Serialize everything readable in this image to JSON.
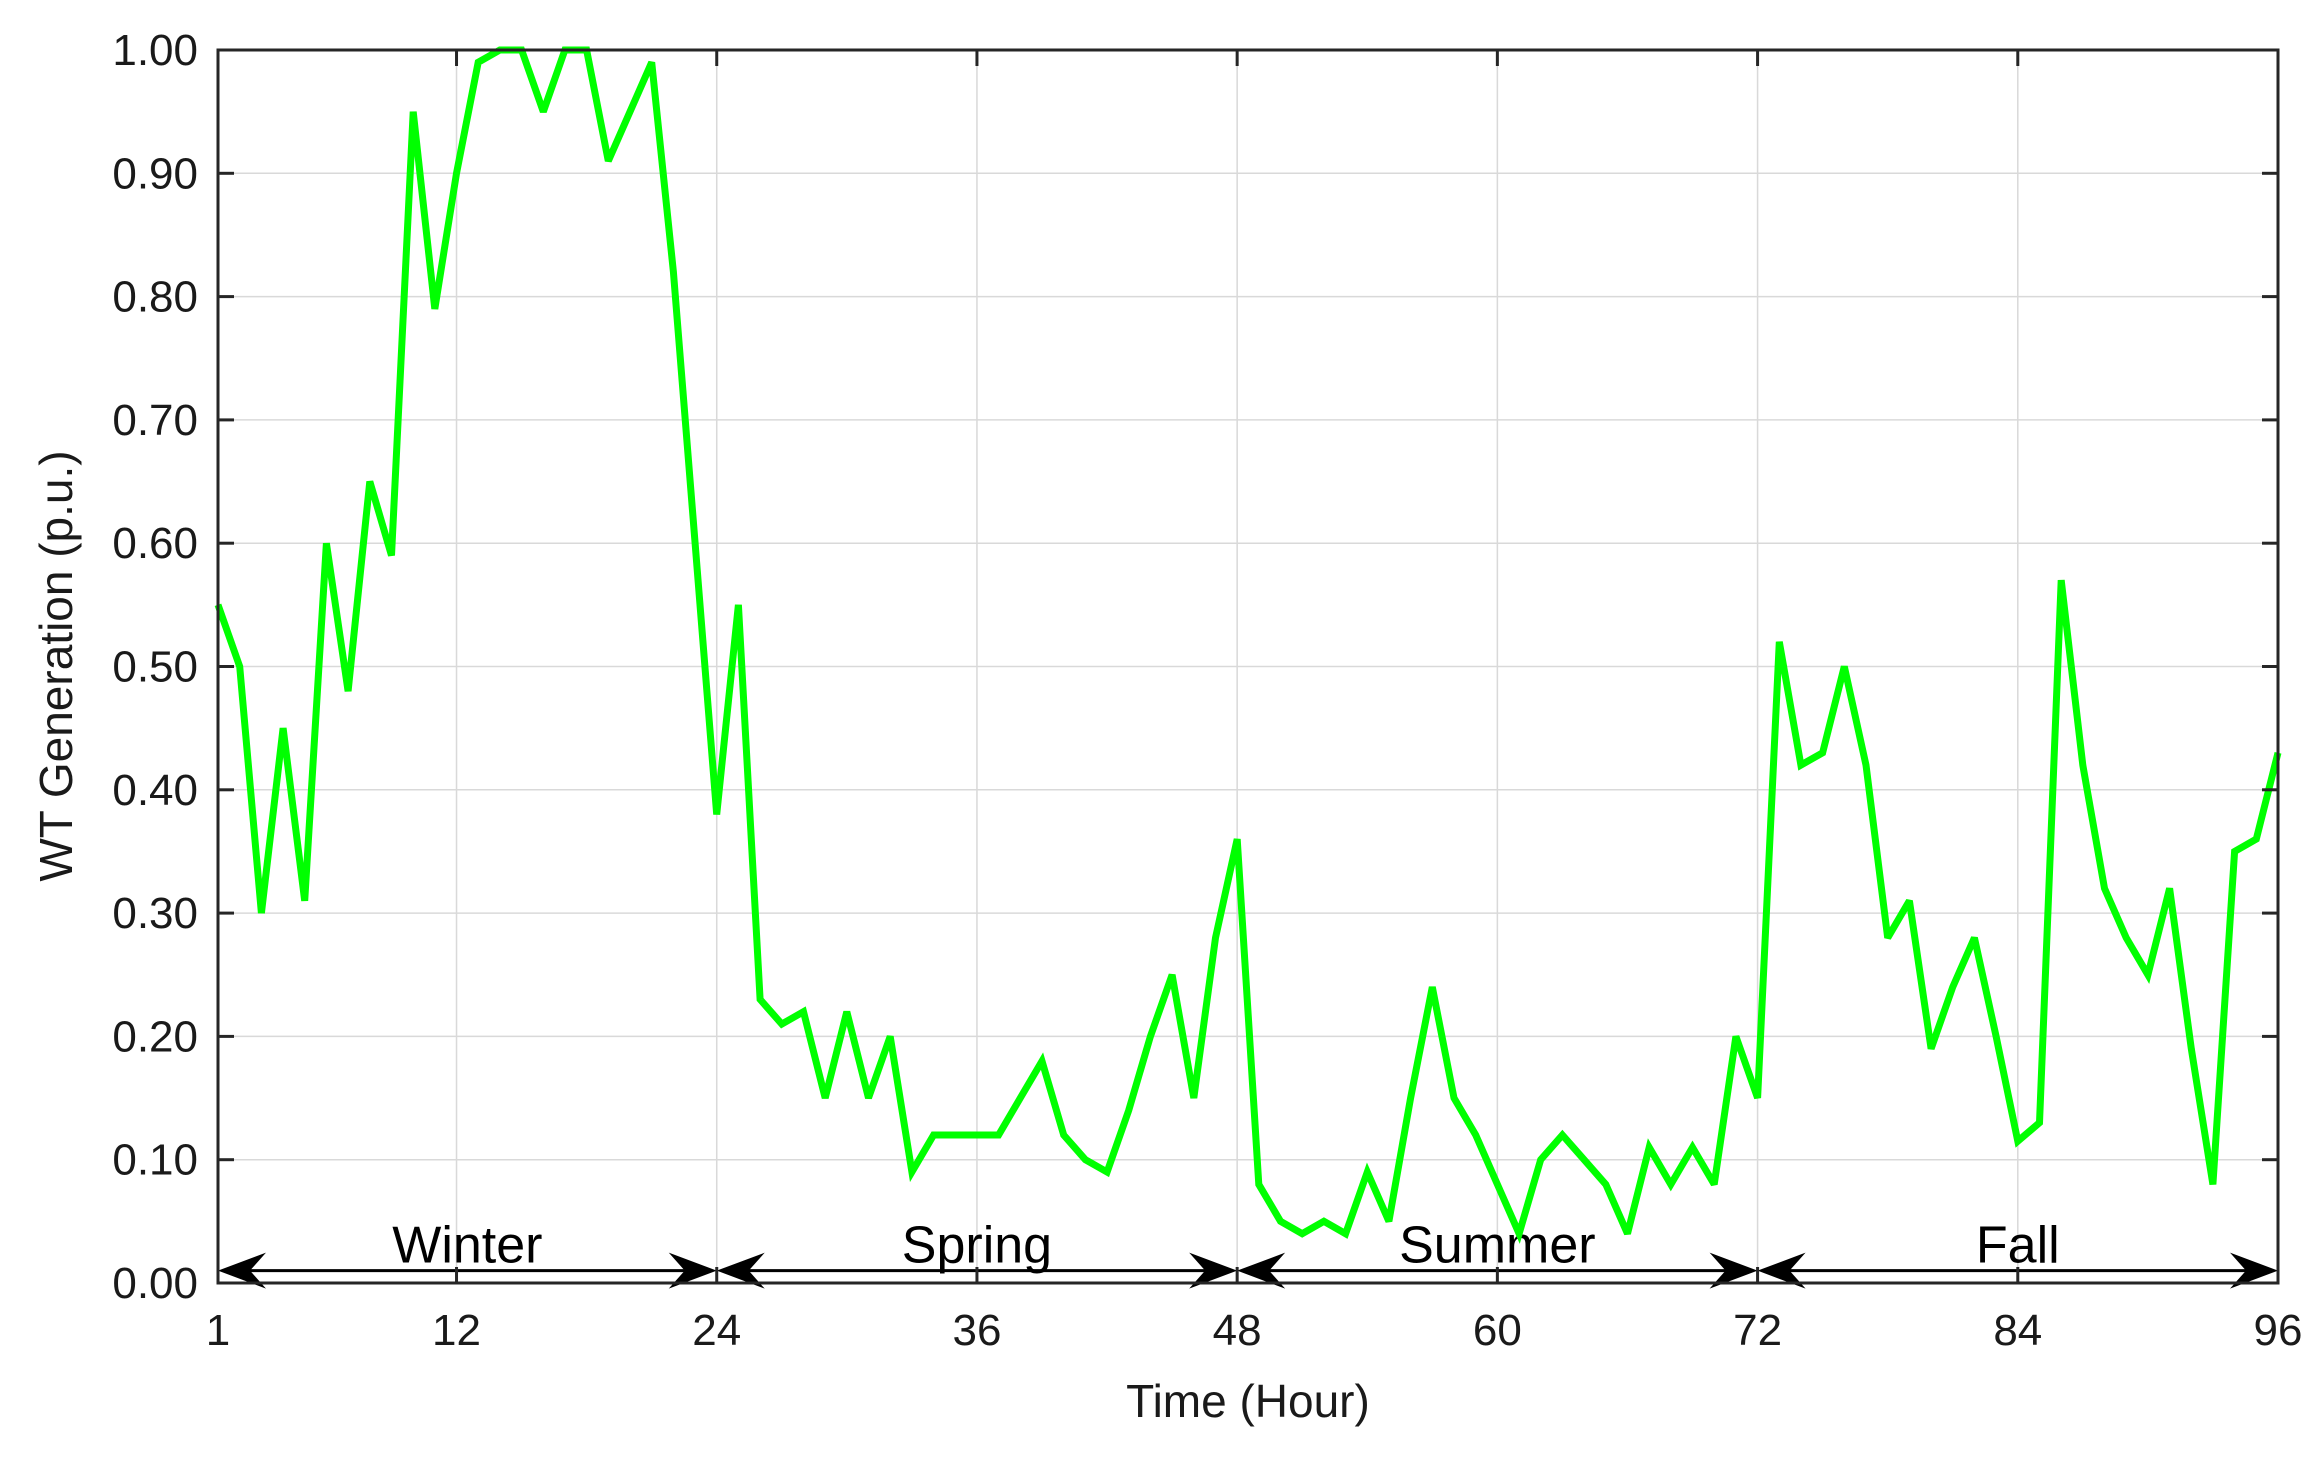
{
  "chart_data": {
    "type": "line",
    "title": "",
    "xlabel": "Time (Hour)",
    "ylabel": "WT Generation (p.u.)",
    "xlim": [
      1,
      96
    ],
    "ylim": [
      0,
      1
    ],
    "grid": true,
    "line_color": "#00ff00",
    "x_ticks": [
      {
        "value": 1,
        "label": "1"
      },
      {
        "value": 12,
        "label": "12"
      },
      {
        "value": 24,
        "label": "24"
      },
      {
        "value": 36,
        "label": "36"
      },
      {
        "value": 48,
        "label": "48"
      },
      {
        "value": 60,
        "label": "60"
      },
      {
        "value": 72,
        "label": "72"
      },
      {
        "value": 84,
        "label": "84"
      },
      {
        "value": 96,
        "label": "96"
      }
    ],
    "y_ticks": [
      {
        "value": 0.0,
        "label": "0.00"
      },
      {
        "value": 0.1,
        "label": "0.10"
      },
      {
        "value": 0.2,
        "label": "0.20"
      },
      {
        "value": 0.3,
        "label": "0.30"
      },
      {
        "value": 0.4,
        "label": "0.40"
      },
      {
        "value": 0.5,
        "label": "0.50"
      },
      {
        "value": 0.6,
        "label": "0.60"
      },
      {
        "value": 0.7,
        "label": "0.70"
      },
      {
        "value": 0.8,
        "label": "0.80"
      },
      {
        "value": 0.9,
        "label": "0.90"
      },
      {
        "value": 1.0,
        "label": "1.00"
      }
    ],
    "seasons": [
      {
        "label": "Winter",
        "start": 1,
        "end": 24
      },
      {
        "label": "Spring",
        "start": 24,
        "end": 48
      },
      {
        "label": "Summer",
        "start": 48,
        "end": 72
      },
      {
        "label": "Fall",
        "start": 72,
        "end": 96
      }
    ],
    "season_arrow_y": 0.01,
    "series": [
      {
        "x": [
          1,
          2,
          3,
          4,
          5,
          6,
          7,
          8,
          9,
          10,
          11,
          12,
          13,
          14,
          15,
          16,
          17,
          18,
          19,
          20,
          21,
          22,
          23,
          24,
          25,
          26,
          27,
          28,
          29,
          30,
          31,
          32,
          33,
          34,
          35,
          36,
          37,
          38,
          39,
          40,
          41,
          42,
          43,
          44,
          45,
          46,
          47,
          48,
          49,
          50,
          51,
          52,
          53,
          54,
          55,
          56,
          57,
          58,
          59,
          60,
          61,
          62,
          63,
          64,
          65,
          66,
          67,
          68,
          69,
          70,
          71,
          72,
          73,
          74,
          75,
          76,
          77,
          78,
          79,
          80,
          81,
          82,
          83,
          84,
          85,
          86,
          87,
          88,
          89,
          90,
          91,
          92,
          93,
          94,
          95,
          96
        ],
        "y": [
          0.55,
          0.5,
          0.3,
          0.45,
          0.31,
          0.6,
          0.48,
          0.65,
          0.59,
          0.95,
          0.79,
          0.9,
          0.99,
          1.0,
          1.0,
          0.95,
          1.0,
          1.0,
          0.91,
          0.95,
          0.99,
          0.82,
          0.6,
          0.38,
          0.55,
          0.23,
          0.21,
          0.22,
          0.15,
          0.22,
          0.15,
          0.2,
          0.09,
          0.12,
          0.12,
          0.12,
          0.12,
          0.15,
          0.18,
          0.12,
          0.1,
          0.09,
          0.14,
          0.2,
          0.25,
          0.15,
          0.28,
          0.36,
          0.08,
          0.05,
          0.04,
          0.05,
          0.04,
          0.09,
          0.05,
          0.15,
          0.24,
          0.15,
          0.12,
          0.08,
          0.04,
          0.1,
          0.12,
          0.1,
          0.08,
          0.04,
          0.11,
          0.08,
          0.11,
          0.08,
          0.2,
          0.15,
          0.52,
          0.42,
          0.43,
          0.5,
          0.42,
          0.28,
          0.31,
          0.19,
          0.24,
          0.28,
          0.2,
          0.115,
          0.13,
          0.57,
          0.42,
          0.32,
          0.28,
          0.25,
          0.32,
          0.19,
          0.08,
          0.35,
          0.36,
          0.43
        ]
      }
    ]
  }
}
